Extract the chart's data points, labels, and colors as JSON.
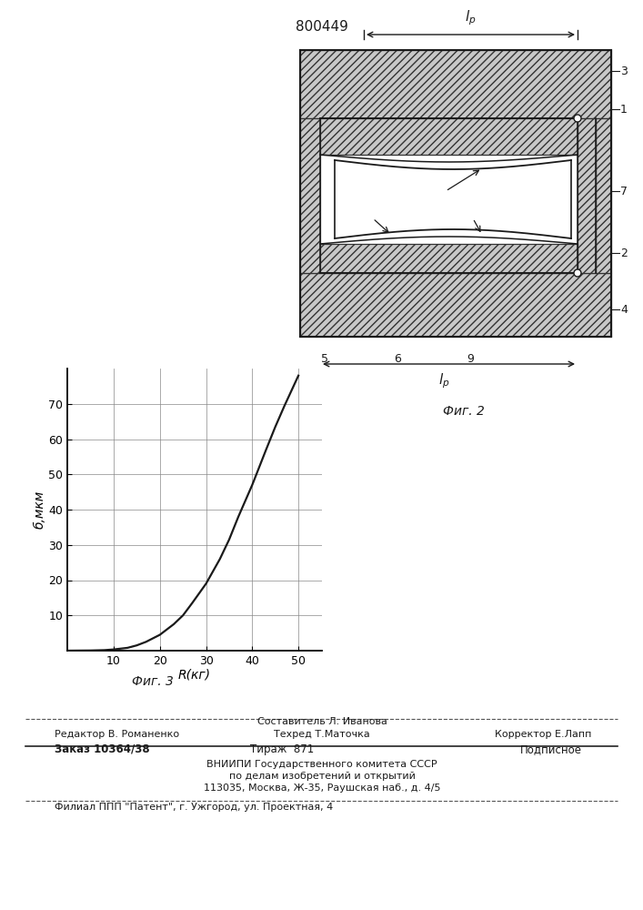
{
  "patent_number": "800449",
  "fig2_caption": "Фиг. 2",
  "fig3_caption": "Фиг. 3",
  "graph_xlabel": "R(кг)",
  "graph_ylabel": "б,мкм",
  "graph_xticks": [
    10,
    20,
    30,
    40,
    50
  ],
  "graph_yticks": [
    10,
    20,
    30,
    40,
    50,
    60,
    70
  ],
  "graph_xlim": [
    0,
    55
  ],
  "graph_ylim": [
    0,
    80
  ],
  "curve_x": [
    0,
    5,
    8,
    10,
    13,
    15,
    17,
    20,
    23,
    25,
    27,
    30,
    33,
    35,
    37,
    40,
    43,
    45,
    47,
    50
  ],
  "curve_y": [
    0,
    0.05,
    0.15,
    0.35,
    0.8,
    1.5,
    2.5,
    4.5,
    7.5,
    10.0,
    13.5,
    19.0,
    26.0,
    31.5,
    38.0,
    47.0,
    57.0,
    63.5,
    69.5,
    78.0
  ],
  "bg_color": "#ffffff",
  "line_color": "#1a1a1a",
  "grid_color": "#888888",
  "text_color": "#1a1a1a",
  "hatch_fc": "#c8c8c8",
  "hatch_ec": "#333333",
  "footer_redaktor": "Редактор В. Романенко",
  "footer_sostavitel": "Составитель Л. Иванова",
  "footer_tehred": "Техред Т.Маточка",
  "footer_korrektor": "Корректор Е.Лапп",
  "footer_zakaz": "Заказ 10364/38",
  "footer_tirazh": "Тираж  871",
  "footer_podpisnoe": "Подписное",
  "footer_vniipti1": "ВНИИПИ Государственного комитета СССР",
  "footer_vniipti2": "по делам изобретений и открытий",
  "footer_vniipti3": "113035, Москва, Ж-35, Раушская наб., д. 4/5",
  "footer_filial": "Филиал ППП \"Патент\", г. Ужгород, ул. Проектная, 4"
}
